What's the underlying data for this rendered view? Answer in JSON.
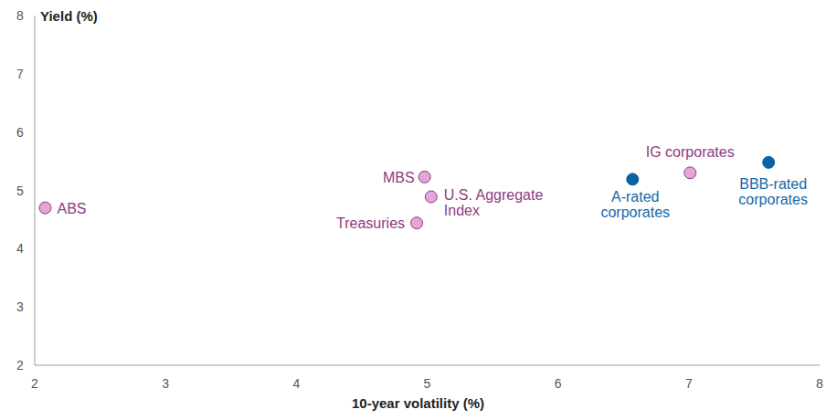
{
  "chart_data": {
    "type": "scatter",
    "x_label": "10-year volatility (%)",
    "y_label": "Yield (%)",
    "labels": [
      "ABS",
      "MBS",
      "U.S. Aggregate Index",
      "Treasuries",
      "A-rated corporates",
      "IG corporates",
      "BBB-rated corporates"
    ],
    "x": [
      2.08,
      4.98,
      5.03,
      4.92,
      6.57,
      7.01,
      7.61
    ],
    "values": [
      4.7,
      5.23,
      4.89,
      4.44,
      5.19,
      5.3,
      5.48
    ],
    "colors": [
      "#e3a6d6",
      "#e3a6d6",
      "#e3a6d6",
      "#e3a6d6",
      "#0b62a3",
      "#e3a6d6",
      "#0b62a3"
    ],
    "xlim": [
      2,
      8
    ],
    "ylim": [
      2,
      8
    ],
    "xticks": [
      2,
      3,
      4,
      5,
      6,
      7,
      8
    ],
    "yticks": [
      2,
      3,
      4,
      5,
      6,
      7,
      8
    ],
    "grid": false
  }
}
